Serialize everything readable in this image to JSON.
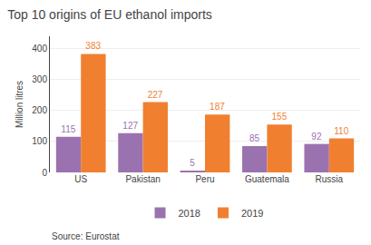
{
  "chart_data": {
    "type": "bar",
    "title": "Top 10 origins of EU ethanol imports",
    "categories": [
      "US",
      "Pakistan",
      "Peru",
      "Guatemala",
      "Russia"
    ],
    "series": [
      {
        "name": "2018",
        "color": "#9b72b0",
        "values": [
          115,
          127,
          5,
          85,
          92
        ]
      },
      {
        "name": "2019",
        "color": "#f08030",
        "values": [
          383,
          227,
          187,
          155,
          110
        ]
      }
    ],
    "ylabel": "Million litres",
    "ylim": [
      0,
      440
    ],
    "yticks": [
      0,
      100,
      200,
      300,
      400
    ],
    "grid": true,
    "data_labels": true,
    "legend": "bottom",
    "annotations": [
      "Source: Eurostat"
    ]
  }
}
